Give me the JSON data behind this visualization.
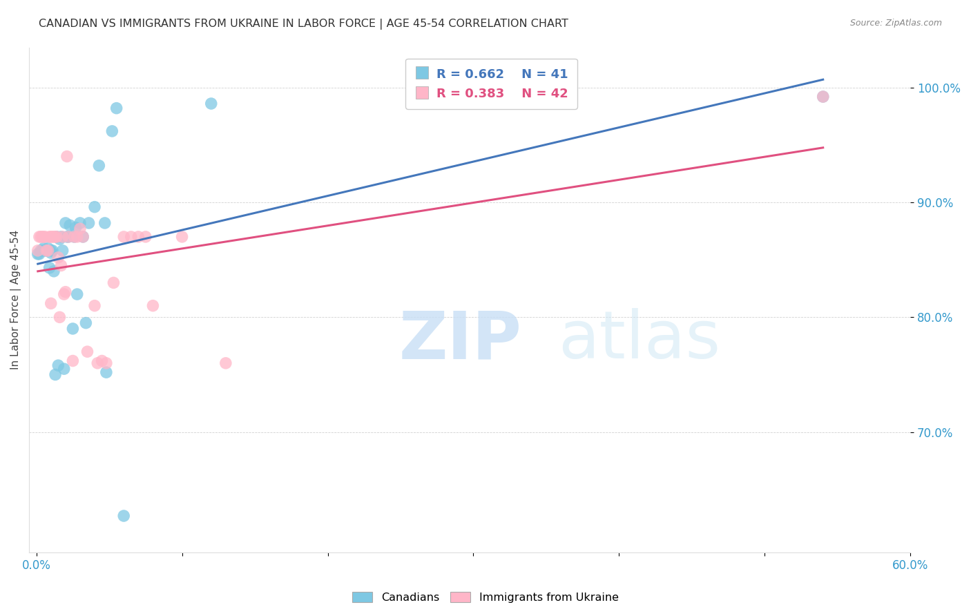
{
  "title": "CANADIAN VS IMMIGRANTS FROM UKRAINE IN LABOR FORCE | AGE 45-54 CORRELATION CHART",
  "source": "Source: ZipAtlas.com",
  "ylabel": "In Labor Force | Age 45-54",
  "xlim_min": -0.005,
  "xlim_max": 0.6,
  "ylim_min": 0.595,
  "ylim_max": 1.035,
  "yticks": [
    0.7,
    0.8,
    0.9,
    1.0
  ],
  "ytick_labels": [
    "70.0%",
    "80.0%",
    "90.0%",
    "100.0%"
  ],
  "xticks": [
    0.0,
    0.1,
    0.2,
    0.3,
    0.4,
    0.5,
    0.6
  ],
  "xtick_labels": [
    "0.0%",
    "",
    "",
    "",
    "",
    "",
    "60.0%"
  ],
  "legend_blue_r": "R = 0.662",
  "legend_blue_n": "N = 41",
  "legend_pink_r": "R = 0.383",
  "legend_pink_n": "N = 42",
  "blue_color": "#7ec8e3",
  "pink_color": "#ffb6c8",
  "blue_line_color": "#4477bb",
  "pink_line_color": "#e05080",
  "blue_x": [
    0.001,
    0.002,
    0.003,
    0.004,
    0.005,
    0.006,
    0.007,
    0.008,
    0.009,
    0.01,
    0.01,
    0.011,
    0.012,
    0.013,
    0.014,
    0.015,
    0.016,
    0.017,
    0.018,
    0.019,
    0.02,
    0.021,
    0.022,
    0.023,
    0.025,
    0.026,
    0.027,
    0.028,
    0.03,
    0.032,
    0.034,
    0.036,
    0.04,
    0.043,
    0.047,
    0.048,
    0.052,
    0.055,
    0.06,
    0.12,
    0.54
  ],
  "blue_y": [
    0.855,
    0.855,
    0.858,
    0.858,
    0.86,
    0.858,
    0.858,
    0.86,
    0.843,
    0.858,
    0.856,
    0.858,
    0.84,
    0.75,
    0.87,
    0.758,
    0.868,
    0.87,
    0.858,
    0.755,
    0.882,
    0.87,
    0.87,
    0.88,
    0.79,
    0.87,
    0.878,
    0.82,
    0.882,
    0.87,
    0.795,
    0.882,
    0.896,
    0.932,
    0.882,
    0.752,
    0.962,
    0.982,
    0.627,
    0.986,
    0.992
  ],
  "pink_x": [
    0.001,
    0.002,
    0.003,
    0.004,
    0.005,
    0.006,
    0.007,
    0.008,
    0.009,
    0.01,
    0.01,
    0.011,
    0.012,
    0.013,
    0.014,
    0.015,
    0.016,
    0.017,
    0.018,
    0.019,
    0.02,
    0.021,
    0.022,
    0.025,
    0.026,
    0.028,
    0.03,
    0.032,
    0.035,
    0.04,
    0.042,
    0.045,
    0.048,
    0.053,
    0.06,
    0.065,
    0.07,
    0.075,
    0.08,
    0.1,
    0.13,
    0.54
  ],
  "pink_y": [
    0.858,
    0.87,
    0.87,
    0.87,
    0.87,
    0.87,
    0.858,
    0.858,
    0.87,
    0.87,
    0.812,
    0.87,
    0.87,
    0.87,
    0.87,
    0.852,
    0.8,
    0.845,
    0.87,
    0.82,
    0.822,
    0.94,
    0.87,
    0.762,
    0.87,
    0.87,
    0.877,
    0.87,
    0.77,
    0.81,
    0.76,
    0.762,
    0.76,
    0.83,
    0.87,
    0.87,
    0.87,
    0.87,
    0.81,
    0.87,
    0.76,
    0.992
  ]
}
